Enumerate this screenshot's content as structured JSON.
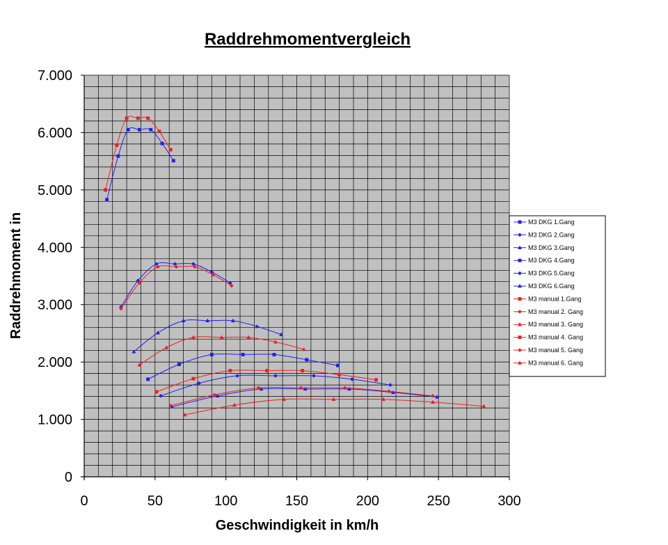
{
  "chart_data": {
    "type": "line",
    "title": "Raddrehmomentvergleich",
    "xlabel": "Geschwindigkeit in km/h",
    "ylabel": "Raddrehmoment in",
    "xlim": [
      0,
      300
    ],
    "ylim": [
      0,
      7000
    ],
    "x_ticks": [
      "0",
      "50",
      "100",
      "150",
      "200",
      "250",
      "300"
    ],
    "y_ticks": [
      "0",
      "1.000",
      "2.000",
      "3.000",
      "4.000",
      "5.000",
      "6.000",
      "7.000"
    ],
    "grid": true,
    "legend_position": "right",
    "colors": {
      "dkg": "#1f1ff0",
      "manual": "#f01f1f",
      "plot_background": "#c0c0c0",
      "grid": "#000000"
    },
    "series": [
      {
        "name": "M3 DKG 1.Gang",
        "group": "dkg",
        "marker": "square",
        "points": [
          [
            16,
            4830
          ],
          [
            24,
            5590
          ],
          [
            31,
            6050
          ],
          [
            39,
            6050
          ],
          [
            47,
            6050
          ],
          [
            55,
            5810
          ],
          [
            63,
            5510
          ]
        ]
      },
      {
        "name": "M3 DKG 2.Gang",
        "group": "dkg",
        "marker": "diamond",
        "points": [
          [
            26,
            2960
          ],
          [
            38,
            3420
          ],
          [
            51,
            3710
          ],
          [
            64,
            3710
          ],
          [
            77,
            3710
          ],
          [
            90,
            3570
          ],
          [
            103,
            3380
          ]
        ]
      },
      {
        "name": "M3 DKG 3.Gang",
        "group": "dkg",
        "marker": "triangle",
        "points": [
          [
            35,
            2180
          ],
          [
            52,
            2510
          ],
          [
            70,
            2720
          ],
          [
            87,
            2720
          ],
          [
            105,
            2720
          ],
          [
            122,
            2620
          ],
          [
            139,
            2480
          ]
        ]
      },
      {
        "name": "M3 DKG 4.Gang",
        "group": "dkg",
        "marker": "square",
        "points": [
          [
            45,
            1700
          ],
          [
            67,
            1960
          ],
          [
            90,
            2130
          ],
          [
            112,
            2130
          ],
          [
            134,
            2130
          ],
          [
            157,
            2040
          ],
          [
            179,
            1940
          ]
        ]
      },
      {
        "name": "M3 DKG 5.Gang",
        "group": "dkg",
        "marker": "diamond",
        "points": [
          [
            54,
            1410
          ],
          [
            81,
            1630
          ],
          [
            108,
            1760
          ],
          [
            135,
            1760
          ],
          [
            162,
            1760
          ],
          [
            189,
            1700
          ],
          [
            216,
            1600
          ]
        ]
      },
      {
        "name": "M3 DKG 6.Gang",
        "group": "dkg",
        "marker": "triangle",
        "points": [
          [
            62,
            1220
          ],
          [
            94,
            1410
          ],
          [
            125,
            1530
          ],
          [
            156,
            1530
          ],
          [
            187,
            1530
          ],
          [
            218,
            1470
          ],
          [
            249,
            1390
          ]
        ]
      },
      {
        "name": "M3 manual 1.Gang",
        "group": "manual",
        "marker": "square",
        "points": [
          [
            15,
            5000
          ],
          [
            23,
            5780
          ],
          [
            30,
            6250
          ],
          [
            38,
            6250
          ],
          [
            45,
            6250
          ],
          [
            53,
            6020
          ],
          [
            61,
            5700
          ]
        ]
      },
      {
        "name": "M3 manual 2. Gang",
        "group": "manual",
        "marker": "diamond",
        "points": [
          [
            26,
            2930
          ],
          [
            39,
            3380
          ],
          [
            52,
            3660
          ],
          [
            65,
            3660
          ],
          [
            78,
            3660
          ],
          [
            91,
            3520
          ],
          [
            104,
            3330
          ]
        ]
      },
      {
        "name": "M3 manual 3. Gang",
        "group": "manual",
        "marker": "triangle",
        "points": [
          [
            39,
            1950
          ],
          [
            58,
            2250
          ],
          [
            77,
            2430
          ],
          [
            97,
            2430
          ],
          [
            116,
            2430
          ],
          [
            135,
            2350
          ],
          [
            155,
            2220
          ]
        ]
      },
      {
        "name": "M3 manual 4. Gang",
        "group": "manual",
        "marker": "square",
        "points": [
          [
            51,
            1480
          ],
          [
            77,
            1710
          ],
          [
            103,
            1850
          ],
          [
            129,
            1850
          ],
          [
            154,
            1850
          ],
          [
            180,
            1780
          ],
          [
            206,
            1690
          ]
        ]
      },
      {
        "name": "M3 manual 5. Gang",
        "group": "manual",
        "marker": "diamond",
        "points": [
          [
            61,
            1240
          ],
          [
            92,
            1430
          ],
          [
            123,
            1550
          ],
          [
            153,
            1550
          ],
          [
            184,
            1550
          ],
          [
            215,
            1490
          ],
          [
            246,
            1410
          ]
        ]
      },
      {
        "name": "M3 manual 6. Gang",
        "group": "manual",
        "marker": "triangle",
        "points": [
          [
            71,
            1080
          ],
          [
            106,
            1250
          ],
          [
            141,
            1350
          ],
          [
            176,
            1350
          ],
          [
            211,
            1350
          ],
          [
            246,
            1300
          ],
          [
            282,
            1230
          ]
        ]
      }
    ]
  }
}
